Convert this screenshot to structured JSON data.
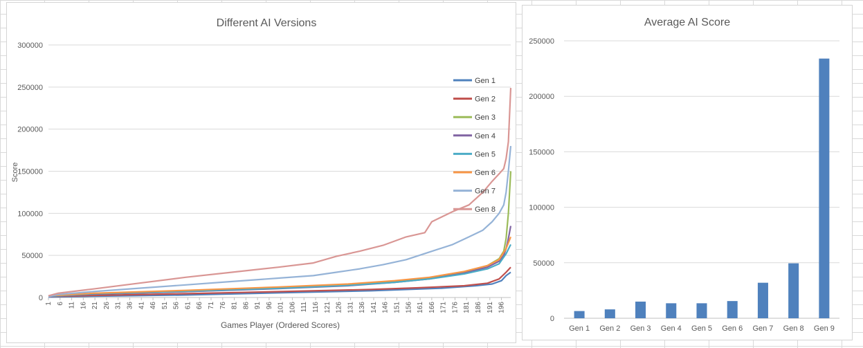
{
  "chart_data": [
    {
      "type": "line",
      "title": "Different AI Versions",
      "xlabel": "Games Player (Ordered Scores)",
      "ylabel": "Score",
      "ylim": [
        0,
        300000
      ],
      "yticks": [
        0,
        50000,
        100000,
        150000,
        200000,
        250000,
        300000
      ],
      "xrange": [
        1,
        200
      ],
      "xticks": [
        1,
        6,
        11,
        16,
        21,
        26,
        31,
        36,
        41,
        46,
        51,
        56,
        61,
        66,
        71,
        76,
        81,
        86,
        91,
        96,
        101,
        106,
        111,
        116,
        121,
        126,
        131,
        136,
        141,
        146,
        151,
        156,
        161,
        166,
        171,
        176,
        181,
        186,
        191,
        196
      ],
      "grid": true,
      "legend": "right",
      "series": [
        {
          "name": "Gen 1",
          "color": "#4f81bd",
          "points": [
            [
              1,
              500
            ],
            [
              20,
              1500
            ],
            [
              60,
              3000
            ],
            [
              100,
              5500
            ],
            [
              140,
              8000
            ],
            [
              170,
              11000
            ],
            [
              185,
              14000
            ],
            [
              192,
              16000
            ],
            [
              196,
              20000
            ],
            [
              198,
              26000
            ],
            [
              200,
              30000
            ]
          ]
        },
        {
          "name": "Gen 2",
          "color": "#c0504d",
          "points": [
            [
              1,
              1000
            ],
            [
              20,
              2500
            ],
            [
              60,
              4500
            ],
            [
              100,
              7000
            ],
            [
              140,
              9500
            ],
            [
              160,
              11500
            ],
            [
              180,
              14000
            ],
            [
              190,
              17000
            ],
            [
              195,
              22000
            ],
            [
              198,
              30000
            ],
            [
              200,
              36000
            ]
          ]
        },
        {
          "name": "Gen 3",
          "color": "#9bbb59",
          "points": [
            [
              1,
              1000
            ],
            [
              20,
              4000
            ],
            [
              60,
              7000
            ],
            [
              100,
              11000
            ],
            [
              130,
              15000
            ],
            [
              150,
              19000
            ],
            [
              165,
              23000
            ],
            [
              180,
              30000
            ],
            [
              190,
              38000
            ],
            [
              195,
              46000
            ],
            [
              197,
              55000
            ],
            [
              198,
              70000
            ],
            [
              199,
              100000
            ],
            [
              200,
              150000
            ]
          ]
        },
        {
          "name": "Gen 4",
          "color": "#8064a2",
          "points": [
            [
              1,
              1000
            ],
            [
              20,
              4000
            ],
            [
              60,
              7000
            ],
            [
              100,
              10500
            ],
            [
              130,
              14000
            ],
            [
              150,
              18000
            ],
            [
              165,
              22000
            ],
            [
              180,
              29000
            ],
            [
              190,
              36000
            ],
            [
              195,
              43000
            ],
            [
              197,
              50000
            ],
            [
              198,
              58000
            ],
            [
              199,
              70000
            ],
            [
              200,
              85000
            ]
          ]
        },
        {
          "name": "Gen 5",
          "color": "#4bacc6",
          "points": [
            [
              1,
              1500
            ],
            [
              20,
              4500
            ],
            [
              60,
              7500
            ],
            [
              100,
              11000
            ],
            [
              130,
              14500
            ],
            [
              150,
              18000
            ],
            [
              165,
              22000
            ],
            [
              180,
              28000
            ],
            [
              190,
              34000
            ],
            [
              195,
              40000
            ],
            [
              198,
              52000
            ],
            [
              200,
              63000
            ]
          ]
        },
        {
          "name": "Gen 6",
          "color": "#f79646",
          "points": [
            [
              1,
              2000
            ],
            [
              20,
              5000
            ],
            [
              60,
              8500
            ],
            [
              100,
              12500
            ],
            [
              130,
              16000
            ],
            [
              150,
              20000
            ],
            [
              165,
              24000
            ],
            [
              180,
              31000
            ],
            [
              190,
              38000
            ],
            [
              195,
              45000
            ],
            [
              198,
              58000
            ],
            [
              200,
              72000
            ]
          ]
        },
        {
          "name": "Gen 7",
          "color": "#95b3d7",
          "points": [
            [
              1,
              1000
            ],
            [
              5,
              3500
            ],
            [
              20,
              7000
            ],
            [
              40,
              11000
            ],
            [
              60,
              15000
            ],
            [
              80,
              19000
            ],
            [
              100,
              23000
            ],
            [
              115,
              26000
            ],
            [
              125,
              30000
            ],
            [
              135,
              34000
            ],
            [
              145,
              39000
            ],
            [
              155,
              45000
            ],
            [
              165,
              54000
            ],
            [
              175,
              63000
            ],
            [
              182,
              72000
            ],
            [
              188,
              80000
            ],
            [
              192,
              90000
            ],
            [
              195,
              100000
            ],
            [
              197,
              110000
            ],
            [
              198,
              125000
            ],
            [
              199,
              150000
            ],
            [
              200,
              180000
            ]
          ]
        },
        {
          "name": "Gen 8",
          "color": "#d99694",
          "points": [
            [
              1,
              2000
            ],
            [
              5,
              5000
            ],
            [
              20,
              10000
            ],
            [
              40,
              17000
            ],
            [
              60,
              24000
            ],
            [
              80,
              30000
            ],
            [
              100,
              36000
            ],
            [
              115,
              41000
            ],
            [
              125,
              49000
            ],
            [
              135,
              55000
            ],
            [
              145,
              62000
            ],
            [
              155,
              72000
            ],
            [
              163,
              77000
            ],
            [
              166,
              90000
            ],
            [
              175,
              102000
            ],
            [
              182,
              110000
            ],
            [
              188,
              125000
            ],
            [
              192,
              138000
            ],
            [
              195,
              147000
            ],
            [
              197,
              153000
            ],
            [
              198,
              165000
            ],
            [
              199,
              185000
            ],
            [
              200,
              249000
            ]
          ]
        }
      ]
    },
    {
      "type": "bar",
      "title": "Average AI Score",
      "categories": [
        "Gen 1",
        "Gen 2",
        "Gen 3",
        "Gen 4",
        "Gen 5",
        "Gen 6",
        "Gen 7",
        "Gen 8",
        "Gen 9"
      ],
      "values": [
        6500,
        8000,
        15000,
        13500,
        13500,
        15500,
        32000,
        49500,
        234000
      ],
      "ylim": [
        0,
        250000
      ],
      "yticks": [
        0,
        50000,
        100000,
        150000,
        200000,
        250000
      ],
      "color": "#4f81bd",
      "grid": true,
      "legend": "none"
    }
  ]
}
